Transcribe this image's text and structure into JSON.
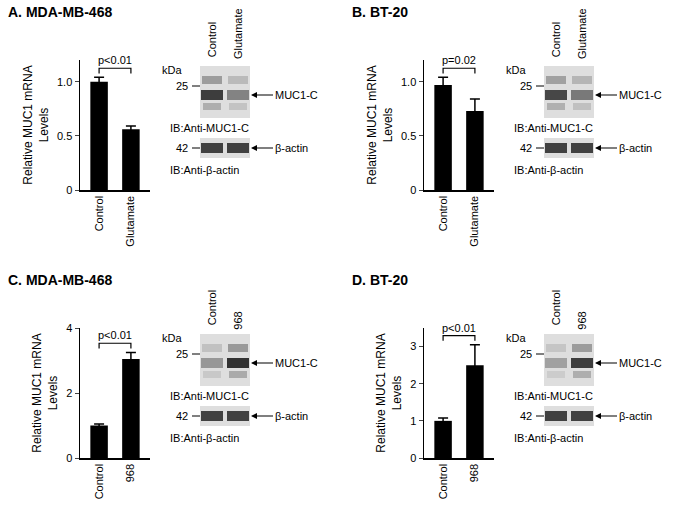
{
  "chart_data": [
    {
      "type": "bar",
      "title": "A. MDA-MB-468",
      "y_label": [
        "Relative MUC1 mRNA",
        "Levels"
      ],
      "categories": [
        "Control",
        "Glutamate"
      ],
      "values": [
        1.0,
        0.56
      ],
      "errors": [
        0.04,
        0.03
      ],
      "color": "#000000",
      "ylim": [
        0,
        1.2
      ],
      "yticks": [
        0,
        0.5,
        {
          "value": 1,
          "label": "1.0"
        }
      ],
      "p_value": "p<0.01",
      "blot": {
        "unit_label": "kDa",
        "lanes": [
          "Control",
          "Glutamate"
        ],
        "rows": [
          {
            "size": 25,
            "band": "MUC1-C",
            "antibody": "IB:Anti-MUC1-C"
          },
          {
            "size": 42,
            "band": "β-actin",
            "antibody": "IB:Anti-β-actin"
          }
        ]
      }
    },
    {
      "type": "bar",
      "title": "B. BT-20",
      "y_label": [
        "Relative MUC1 mRNA",
        "Levels"
      ],
      "categories": [
        "Control",
        "Glutamate"
      ],
      "values": [
        0.97,
        0.73
      ],
      "errors": [
        0.07,
        0.11
      ],
      "color": "#000000",
      "ylim": [
        0,
        1.2
      ],
      "yticks": [
        0,
        0.5,
        {
          "value": 1,
          "label": "1.0"
        }
      ],
      "p_value": "p=0.02",
      "blot": {
        "unit_label": "kDa",
        "lanes": [
          "Control",
          "Glutamate"
        ],
        "rows": [
          {
            "size": 25,
            "band": "MUC1-C",
            "antibody": "IB:Anti-MUC1-C"
          },
          {
            "size": 42,
            "band": "β-actin",
            "antibody": "IB:Anti-β-actin"
          }
        ]
      }
    },
    {
      "type": "bar",
      "title": "C. MDA-MB-468",
      "y_label": [
        "Relative MUC1 mRNA",
        "Levels"
      ],
      "categories": [
        "Control",
        "968"
      ],
      "values": [
        1.0,
        3.05
      ],
      "errors": [
        0.05,
        0.2
      ],
      "color": "#000000",
      "ylim": [
        0,
        4
      ],
      "yticks": [
        0,
        2,
        4
      ],
      "p_value": "p<0.01",
      "blot": {
        "unit_label": "kDa",
        "lanes": [
          "Control",
          "968"
        ],
        "rows": [
          {
            "size": 25,
            "band": "MUC1-C",
            "antibody": "IB:Anti-MUC1-C"
          },
          {
            "size": 42,
            "band": "β-actin",
            "antibody": "IB:Anti-β-actin"
          }
        ]
      }
    },
    {
      "type": "bar",
      "title": "D. BT-20",
      "y_label": [
        "Relative MUC1 mRNA",
        "Levels"
      ],
      "categories": [
        "Control",
        "968"
      ],
      "values": [
        1.0,
        2.5
      ],
      "errors": [
        0.08,
        0.55
      ],
      "color": "#000000",
      "ylim": [
        0,
        3.5
      ],
      "yticks": [
        0,
        1,
        2,
        3
      ],
      "p_value": "p<0.01",
      "blot": {
        "unit_label": "kDa",
        "lanes": [
          "Control",
          "968"
        ],
        "rows": [
          {
            "size": 25,
            "band": "MUC1-C",
            "antibody": "IB:Anti-MUC1-C"
          },
          {
            "size": 42,
            "band": "β-actin",
            "antibody": "IB:Anti-β-actin"
          }
        ]
      }
    }
  ]
}
